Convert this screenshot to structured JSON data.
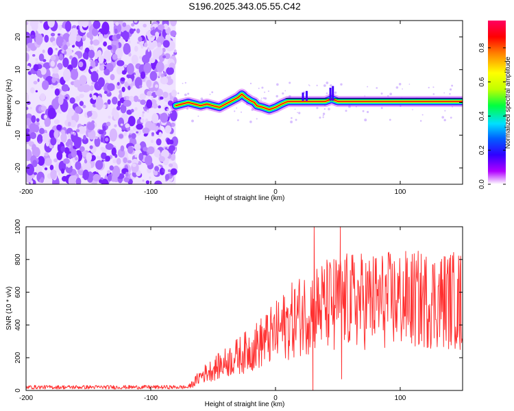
{
  "title": "S196.2025.343.05.55.C42",
  "chart_data": [
    {
      "type": "heatmap",
      "name": "spectrogram",
      "xlabel": "Height of straight line (km)",
      "ylabel": "Frequency (Hz)",
      "xlim": [
        -200,
        150
      ],
      "ylim": [
        -25,
        25
      ],
      "xticks": [
        -200,
        -100,
        0,
        100
      ],
      "yticks": [
        -20,
        -10,
        0,
        10,
        20
      ],
      "noise_region_x": [
        -200,
        -80
      ],
      "signal_start_km": -80,
      "ridge": [
        [
          -80,
          -1
        ],
        [
          -75,
          -0.5
        ],
        [
          -70,
          0
        ],
        [
          -65,
          -0.5
        ],
        [
          -60,
          -1
        ],
        [
          -55,
          -0.5
        ],
        [
          -50,
          -1
        ],
        [
          -45,
          -1.5
        ],
        [
          -40,
          -0.5
        ],
        [
          -35,
          0.5
        ],
        [
          -30,
          1.5
        ],
        [
          -27,
          2.5
        ],
        [
          -24,
          1.5
        ],
        [
          -20,
          0.5
        ],
        [
          -17,
          0
        ],
        [
          -15,
          -1
        ],
        [
          -10,
          -1.5
        ],
        [
          -5,
          -2.2
        ],
        [
          0,
          -1.5
        ],
        [
          5,
          -0.5
        ],
        [
          8,
          0
        ],
        [
          10,
          0.3
        ],
        [
          20,
          0.3
        ],
        [
          30,
          0.3
        ],
        [
          40,
          0.3
        ],
        [
          45,
          1
        ],
        [
          50,
          0.3
        ],
        [
          60,
          0.3
        ],
        [
          100,
          0.3
        ],
        [
          150,
          0.3
        ]
      ],
      "colorbar": {
        "label": "Normalized spectral amplitude",
        "ticks": [
          "0.0",
          "0.2",
          "0.4",
          "0.6",
          "0.8"
        ],
        "range": [
          0,
          0.96
        ],
        "colors": [
          "#ffffff",
          "#b000ff",
          "#3000ff",
          "#0060ff",
          "#00e0ff",
          "#00ff40",
          "#c0ff00",
          "#ffff00",
          "#ff8000",
          "#ff0000",
          "#ff0060"
        ]
      }
    },
    {
      "type": "line",
      "name": "snr",
      "xlabel": "Height of straight line (km)",
      "ylabel": "SNR (10 * v/v)",
      "xlim": [
        -200,
        150
      ],
      "ylim": [
        0,
        1000
      ],
      "xticks": [
        -200,
        -100,
        0,
        100
      ],
      "yticks": [
        0,
        200,
        400,
        600,
        800,
        1000
      ],
      "line_color": "#ff3030",
      "envelope": [
        [
          -200,
          20
        ],
        [
          -70,
          20
        ],
        [
          -65,
          50
        ],
        [
          -60,
          90
        ],
        [
          -50,
          130
        ],
        [
          -40,
          170
        ],
        [
          -30,
          210
        ],
        [
          -20,
          250
        ],
        [
          -10,
          300
        ],
        [
          0,
          350
        ],
        [
          10,
          410
        ],
        [
          20,
          460
        ],
        [
          30,
          500
        ],
        [
          40,
          520
        ],
        [
          50,
          540
        ],
        [
          60,
          545
        ],
        [
          80,
          550
        ],
        [
          100,
          552
        ],
        [
          150,
          555
        ]
      ],
      "spikes": [
        [
          31,
          1000
        ],
        [
          52,
          1000
        ],
        [
          30,
          0
        ],
        [
          53,
          70
        ],
        [
          47,
          250
        ],
        [
          148,
          250
        ],
        [
          146,
          680
        ]
      ]
    }
  ]
}
